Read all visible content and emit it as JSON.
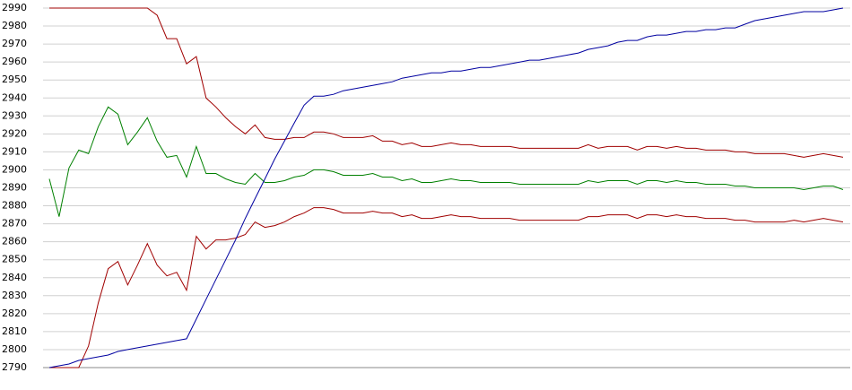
{
  "chart_data": {
    "type": "line",
    "categories": [
      null,
      null,
      null,
      null,
      null,
      null,
      null,
      null,
      null,
      null,
      null,
      null,
      null,
      null,
      null,
      null,
      null,
      null,
      null,
      null,
      null,
      null,
      null,
      null,
      null,
      null,
      null,
      null,
      null,
      null,
      null,
      null,
      null,
      null,
      null,
      null,
      null,
      null,
      null,
      null,
      null,
      null,
      null,
      null,
      null,
      null,
      null,
      null,
      null,
      null,
      null,
      null,
      null,
      null,
      null,
      null,
      null,
      null,
      null,
      null,
      null,
      null,
      null,
      null,
      null,
      null,
      null,
      null,
      null,
      null,
      null,
      null,
      null,
      null,
      null,
      null,
      null,
      null,
      null,
      null,
      null,
      null
    ],
    "ylim": [
      2790,
      2990
    ],
    "yticks": [
      2790,
      2800,
      2810,
      2820,
      2830,
      2840,
      2850,
      2860,
      2870,
      2880,
      2890,
      2900,
      2910,
      2920,
      2930,
      2940,
      2950,
      2960,
      2970,
      2980,
      2990
    ],
    "grid": true,
    "series": [
      {
        "color": "#a00000",
        "values": [
          2990,
          2990,
          2990,
          2990,
          2990,
          2990,
          2990,
          2990,
          2990,
          2990,
          2990,
          2986,
          2973,
          2973,
          2959,
          2963,
          2940,
          2935,
          2929,
          2924,
          2920,
          2925,
          2918,
          2917,
          2917,
          2918,
          2918,
          2921,
          2921,
          2920,
          2918,
          2918,
          2918,
          2919,
          2916,
          2916,
          2914,
          2915,
          2913,
          2913,
          2914,
          2915,
          2914,
          2914,
          2913,
          2913,
          2913,
          2913,
          2912,
          2912,
          2912,
          2912,
          2912,
          2912,
          2912,
          2914,
          2912,
          2913,
          2913,
          2913,
          2911,
          2913,
          2913,
          2912,
          2913,
          2912,
          2912,
          2911,
          2911,
          2911,
          2910,
          2910,
          2909,
          2909,
          2909,
          2909,
          2908,
          2907,
          2908,
          2909,
          2908,
          2907
        ]
      },
      {
        "color": "#008000",
        "values": [
          2895,
          2874,
          2901,
          2911,
          2909,
          2924,
          2935,
          2931,
          2914,
          2921,
          2929,
          2916,
          2907,
          2908,
          2896,
          2913,
          2898,
          2898,
          2895,
          2893,
          2892,
          2898,
          2893,
          2893,
          2894,
          2896,
          2897,
          2900,
          2900,
          2899,
          2897,
          2897,
          2897,
          2898,
          2896,
          2896,
          2894,
          2895,
          2893,
          2893,
          2894,
          2895,
          2894,
          2894,
          2893,
          2893,
          2893,
          2893,
          2892,
          2892,
          2892,
          2892,
          2892,
          2892,
          2892,
          2894,
          2893,
          2894,
          2894,
          2894,
          2892,
          2894,
          2894,
          2893,
          2894,
          2893,
          2893,
          2892,
          2892,
          2892,
          2891,
          2891,
          2890,
          2890,
          2890,
          2890,
          2890,
          2889,
          2890,
          2891,
          2891,
          2889
        ]
      },
      {
        "color": "#a00000",
        "values": [
          2790,
          2790,
          2790,
          2790,
          2802,
          2826,
          2845,
          2849,
          2836,
          2847,
          2859,
          2847,
          2841,
          2843,
          2833,
          2863,
          2856,
          2861,
          2861,
          2862,
          2864,
          2871,
          2868,
          2869,
          2871,
          2874,
          2876,
          2879,
          2879,
          2878,
          2876,
          2876,
          2876,
          2877,
          2876,
          2876,
          2874,
          2875,
          2873,
          2873,
          2874,
          2875,
          2874,
          2874,
          2873,
          2873,
          2873,
          2873,
          2872,
          2872,
          2872,
          2872,
          2872,
          2872,
          2872,
          2874,
          2874,
          2875,
          2875,
          2875,
          2873,
          2875,
          2875,
          2874,
          2875,
          2874,
          2874,
          2873,
          2873,
          2873,
          2872,
          2872,
          2871,
          2871,
          2871,
          2871,
          2872,
          2871,
          2872,
          2873,
          2872,
          2871
        ]
      },
      {
        "color": "#0000a0",
        "values": [
          2790,
          2791,
          2792,
          2794,
          2795,
          2796,
          2797,
          2799,
          2800,
          2801,
          2802,
          2803,
          2804,
          2805,
          2806,
          2817,
          2828,
          2839,
          2850,
          2861,
          2873,
          2884,
          2895,
          2906,
          2916,
          2926,
          2936,
          2941,
          2941,
          2942,
          2944,
          2945,
          2946,
          2947,
          2948,
          2949,
          2951,
          2952,
          2953,
          2954,
          2954,
          2955,
          2955,
          2956,
          2957,
          2957,
          2958,
          2959,
          2960,
          2961,
          2961,
          2962,
          2963,
          2964,
          2965,
          2967,
          2968,
          2969,
          2971,
          2972,
          2972,
          2974,
          2975,
          2975,
          2976,
          2977,
          2977,
          2978,
          2978,
          2979,
          2979,
          2981,
          2983,
          2984,
          2985,
          2986,
          2987,
          2988,
          2988,
          2988,
          2989,
          2990
        ]
      }
    ]
  }
}
